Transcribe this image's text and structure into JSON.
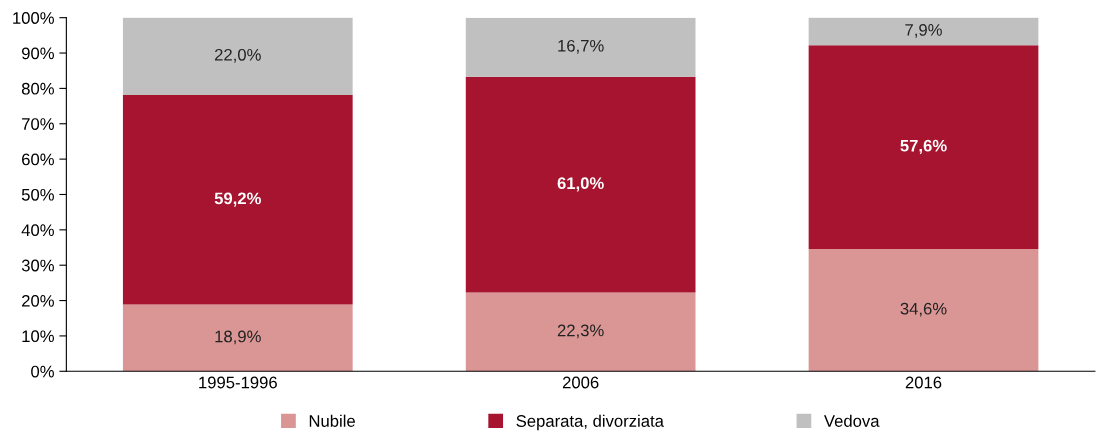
{
  "chart_data": {
    "type": "bar",
    "stacked": true,
    "categories": [
      "1995-1996",
      "2006",
      "2016"
    ],
    "series": [
      {
        "name": "Nubile",
        "color": "#d99694",
        "values": [
          18.9,
          22.3,
          34.6
        ],
        "value_labels": [
          "18,9%",
          "22,3%",
          "34,6%"
        ]
      },
      {
        "name": "Separata, divorziata",
        "color": "#a6142f",
        "values": [
          59.2,
          61.0,
          57.6
        ],
        "value_labels": [
          "59,2%",
          "61,0%",
          "57,6%"
        ]
      },
      {
        "name": "Vedova",
        "color": "#c0c0c0",
        "values": [
          22.0,
          16.7,
          7.9
        ],
        "value_labels": [
          "22,0%",
          "16,7%",
          "7,9%"
        ]
      }
    ],
    "ylim": [
      0,
      100
    ],
    "yticks": [
      {
        "value": 0,
        "label": "0%"
      },
      {
        "value": 10,
        "label": "10%"
      },
      {
        "value": 20,
        "label": "20%"
      },
      {
        "value": 30,
        "label": "30%"
      },
      {
        "value": 40,
        "label": "40%"
      },
      {
        "value": 50,
        "label": "50%"
      },
      {
        "value": 60,
        "label": "60%"
      },
      {
        "value": 70,
        "label": "70%"
      },
      {
        "value": 80,
        "label": "80%"
      },
      {
        "value": 90,
        "label": "90%"
      },
      {
        "value": 100,
        "label": "100%"
      }
    ],
    "grid": false,
    "legend": "bottom"
  }
}
